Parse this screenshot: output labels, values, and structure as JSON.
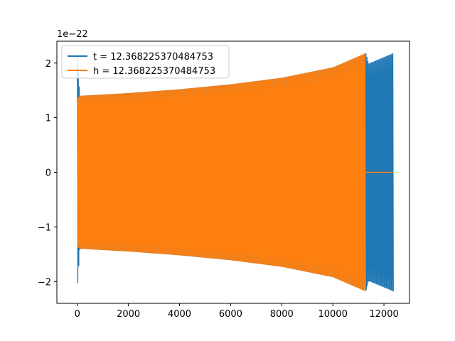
{
  "chart_data": {
    "type": "line",
    "title": "",
    "xlabel": "",
    "ylabel": "",
    "offset_text": "1e−22",
    "xlim": [
      -800,
      13000
    ],
    "ylim": [
      -2.4,
      2.4
    ],
    "x_ticks": [
      0,
      2000,
      4000,
      6000,
      8000,
      10000,
      12000
    ],
    "x_tick_labels": [
      "0",
      "2000",
      "4000",
      "6000",
      "8000",
      "10000",
      "12000"
    ],
    "y_ticks": [
      -2,
      -1,
      0,
      1,
      2
    ],
    "y_tick_labels": [
      "−2",
      "−1",
      "0",
      "1",
      "2"
    ],
    "grid": false,
    "legend": {
      "position": "top-left"
    },
    "series": [
      {
        "name": "t = 12.368225370484753",
        "color": "#1f77b4",
        "envelope": [
          [
            0,
            2.18
          ],
          [
            100,
            1.4
          ],
          [
            2000,
            1.45
          ],
          [
            4000,
            1.52
          ],
          [
            6000,
            1.61
          ],
          [
            8000,
            1.73
          ],
          [
            10000,
            1.92
          ],
          [
            11300,
            2.18
          ],
          [
            11400,
            1.99
          ],
          [
            12368,
            2.18
          ]
        ],
        "zero_after": null
      },
      {
        "name": "h = 12.368225370484753",
        "color": "#ff7f0e",
        "envelope": [
          [
            0,
            1.36
          ],
          [
            100,
            1.4
          ],
          [
            2000,
            1.45
          ],
          [
            4000,
            1.52
          ],
          [
            6000,
            1.61
          ],
          [
            8000,
            1.73
          ],
          [
            10000,
            1.92
          ],
          [
            11280,
            2.18
          ]
        ],
        "zero_after": [
          11280,
          12368
        ]
      }
    ]
  }
}
